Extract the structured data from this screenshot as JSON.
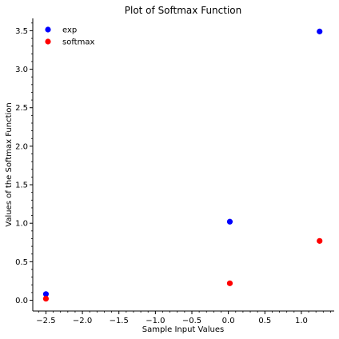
{
  "chart_data": {
    "type": "scatter",
    "title": "Plot of Softmax Function",
    "xlabel": "Sample Input Values",
    "ylabel": "Values of the Softmax Function",
    "xlim": [
      -2.68,
      1.45
    ],
    "ylim": [
      -0.14,
      3.66
    ],
    "xticks": [
      -2.5,
      -2.0,
      -1.5,
      -1.0,
      -0.5,
      0.0,
      0.5,
      1.0
    ],
    "xtick_labels": [
      "−2.5",
      "−2.0",
      "−1.5",
      "−1.0",
      "−0.5",
      "0.0",
      "0.5",
      "1.0"
    ],
    "yticks": [
      0.0,
      0.5,
      1.0,
      1.5,
      2.0,
      2.5,
      3.0,
      3.5
    ],
    "ytick_labels": [
      "0.0",
      "0.5",
      "1.0",
      "1.5",
      "2.0",
      "2.5",
      "3.0",
      "3.5"
    ],
    "grid": false,
    "legend_position": "top-left",
    "series": [
      {
        "name": "exp",
        "color": "#0000ff",
        "x": [
          -2.5,
          0.02,
          1.25
        ],
        "y": [
          0.08,
          1.02,
          3.49
        ]
      },
      {
        "name": "softmax",
        "color": "#ff0000",
        "x": [
          -2.5,
          0.02,
          1.25
        ],
        "y": [
          0.02,
          0.22,
          0.77
        ]
      }
    ]
  }
}
